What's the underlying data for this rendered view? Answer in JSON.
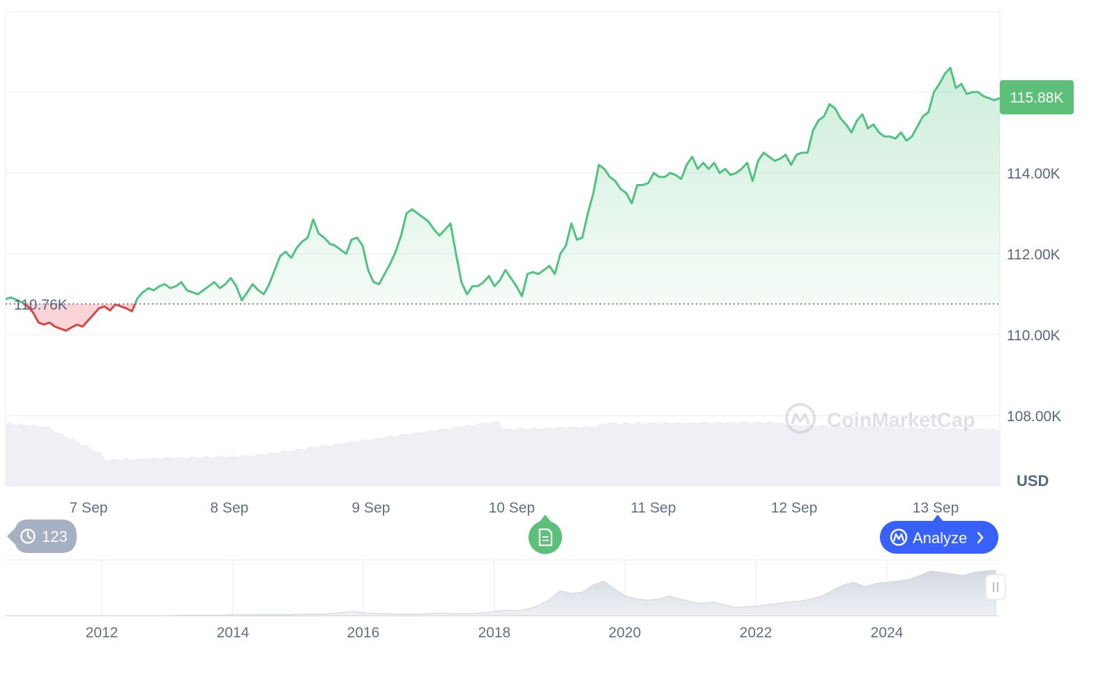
{
  "chart_data": {
    "type": "area",
    "currency_label": "USD",
    "watermark": "CoinMarketCap",
    "reference_price": 110760,
    "reference_label": "110.76K",
    "current_price": 115880,
    "current_label": "115.88K",
    "y_ticks": [
      108000,
      110000,
      112000,
      114000
    ],
    "y_tick_labels": [
      "108.00K",
      "110.00K",
      "112.00K",
      "114.00K"
    ],
    "ylim": [
      106000,
      117800
    ],
    "x_ticks": [
      "7 Sep",
      "8 Sep",
      "9 Sep",
      "10 Sep",
      "11 Sep",
      "12 Sep",
      "13 Sep"
    ],
    "series": [
      {
        "values": [
          110880,
          110920,
          110860,
          110800,
          110700,
          110550,
          110300,
          110250,
          110300,
          110200,
          110150,
          110100,
          110180,
          110250,
          110200,
          110350,
          110500,
          110650,
          110700,
          110600,
          110750,
          110700,
          110650,
          110580,
          110900,
          111050,
          111150,
          111100,
          111200,
          111250,
          111150,
          111200,
          111300,
          111100,
          111050,
          111000,
          111100,
          111200,
          111300,
          111150,
          111250,
          111400,
          111200,
          110850,
          111050,
          111250,
          111100,
          111000,
          111250,
          111600,
          111950,
          112050,
          111900,
          112150,
          112300,
          112400,
          112850,
          112500,
          112400,
          112250,
          112200,
          112100,
          112000,
          112350,
          112400,
          112200,
          111600,
          111300,
          111250,
          111500,
          111750,
          112050,
          112450,
          113000,
          113100,
          113000,
          112900,
          112800,
          112600,
          112450,
          112600,
          112750,
          112000,
          111300,
          111000,
          111200,
          111200,
          111300,
          111450,
          111200,
          111350,
          111600,
          111400,
          111200,
          110950,
          111500,
          111550,
          111500,
          111600,
          111700,
          111500,
          112000,
          112200,
          112750,
          112350,
          112400,
          113000,
          113500,
          114200,
          114100,
          113900,
          113800,
          113600,
          113500,
          113250,
          113700,
          113700,
          113750,
          114000,
          113900,
          113900,
          114000,
          113950,
          113850,
          114200,
          114400,
          114100,
          114250,
          114100,
          114250,
          114000,
          114100,
          113950,
          114000,
          114100,
          114250,
          113800,
          114300,
          114500,
          114400,
          114300,
          114350,
          114450,
          114200,
          114450,
          114500,
          114500,
          115050,
          115300,
          115400,
          115700,
          115600,
          115350,
          115200,
          115000,
          115300,
          115450,
          115100,
          115200,
          115000,
          114900,
          114900,
          114850,
          115000,
          114800,
          114900,
          115150,
          115400,
          115500,
          116000,
          116200,
          116450,
          116600,
          116100,
          116200,
          115950,
          116000,
          116000,
          115900,
          115850,
          115800,
          115850
        ]
      }
    ],
    "navigator": {
      "x_ticks": [
        "2012",
        "2014",
        "2016",
        "2018",
        "2020",
        "2022",
        "2024"
      ],
      "values": [
        0,
        0,
        0,
        0,
        0,
        0,
        0,
        0,
        0,
        0,
        0,
        0,
        0,
        0,
        0,
        0,
        1,
        1,
        1,
        1,
        1,
        2,
        2,
        2,
        2,
        2,
        2,
        3,
        3,
        3,
        4,
        6,
        8,
        5,
        4,
        4,
        3,
        3,
        3,
        4,
        5,
        4,
        4,
        4,
        5,
        8,
        10,
        9,
        12,
        18,
        30,
        45,
        40,
        42,
        55,
        62,
        48,
        35,
        30,
        28,
        30,
        35,
        30,
        25,
        22,
        25,
        20,
        15,
        16,
        17,
        20,
        22,
        25,
        26,
        30,
        35,
        45,
        55,
        60,
        52,
        58,
        60,
        62,
        65,
        72,
        80,
        78,
        75,
        72,
        78,
        80,
        82
      ]
    }
  },
  "badges": {
    "history_count": "123",
    "analyze_label": "Analyze"
  },
  "colors": {
    "up": "#16c784",
    "up_line": "#4fc27e",
    "down": "#ea3943",
    "down_line": "#d64545",
    "badge_green": "#5cc07a",
    "badge_blue": "#3861fb",
    "badge_grey": "#a6b0c3",
    "grid": "#eff2f5"
  },
  "icons": {
    "history": "history-clock-icon",
    "note": "document-icon",
    "analyze": "coinmarketcap-logo-icon",
    "chevron": "chevron-right-icon",
    "handle": "drag-handle-icon"
  }
}
